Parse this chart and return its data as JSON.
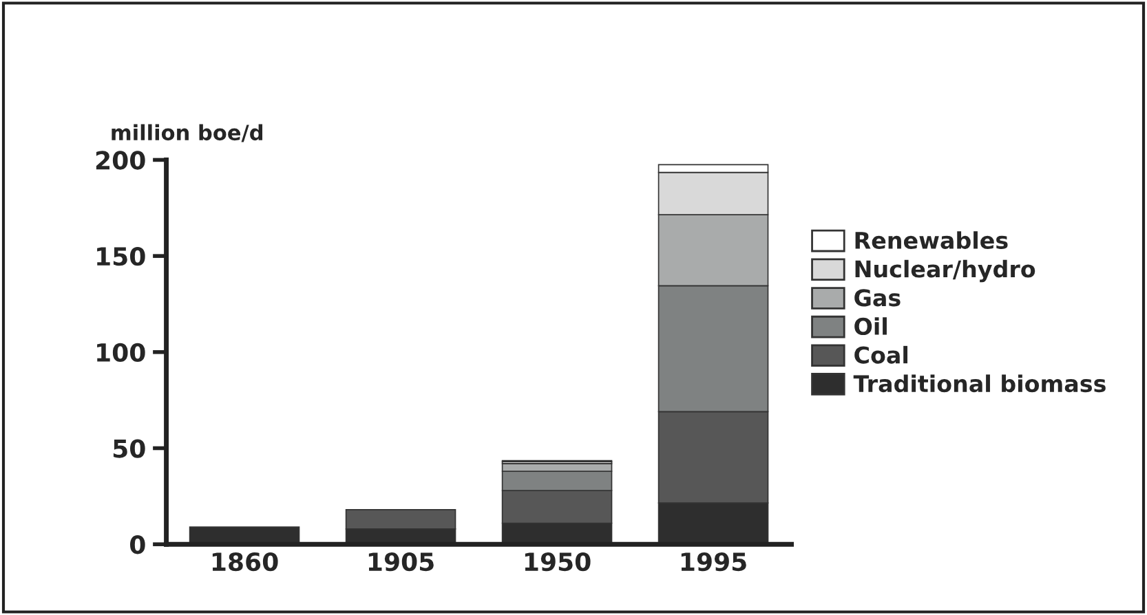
{
  "chart_data": {
    "type": "bar",
    "stacked": true,
    "ylabel": "million boe/d",
    "categories": [
      "1860",
      "1905",
      "1950",
      "1995"
    ],
    "series": [
      {
        "name": "Traditional biomass",
        "color": "#2e2e2e",
        "values": [
          9,
          8,
          11,
          21.5
        ]
      },
      {
        "name": "Coal",
        "color": "#575757",
        "values": [
          0,
          10,
          17,
          47.5
        ]
      },
      {
        "name": "Oil",
        "color": "#7f8282",
        "values": [
          0,
          0,
          10,
          65.5
        ]
      },
      {
        "name": "Gas",
        "color": "#a9abab",
        "values": [
          0,
          0,
          4,
          37
        ]
      },
      {
        "name": "Nuclear/hydro",
        "color": "#d9d9d9",
        "values": [
          0,
          0,
          1,
          22
        ]
      },
      {
        "name": "Renewables",
        "color": "#ffffff",
        "values": [
          0,
          0,
          0.5,
          4
        ]
      }
    ],
    "ylim": [
      0,
      200
    ],
    "yticks": [
      0,
      50,
      100,
      150,
      200
    ],
    "grid": false,
    "legend": "right"
  }
}
